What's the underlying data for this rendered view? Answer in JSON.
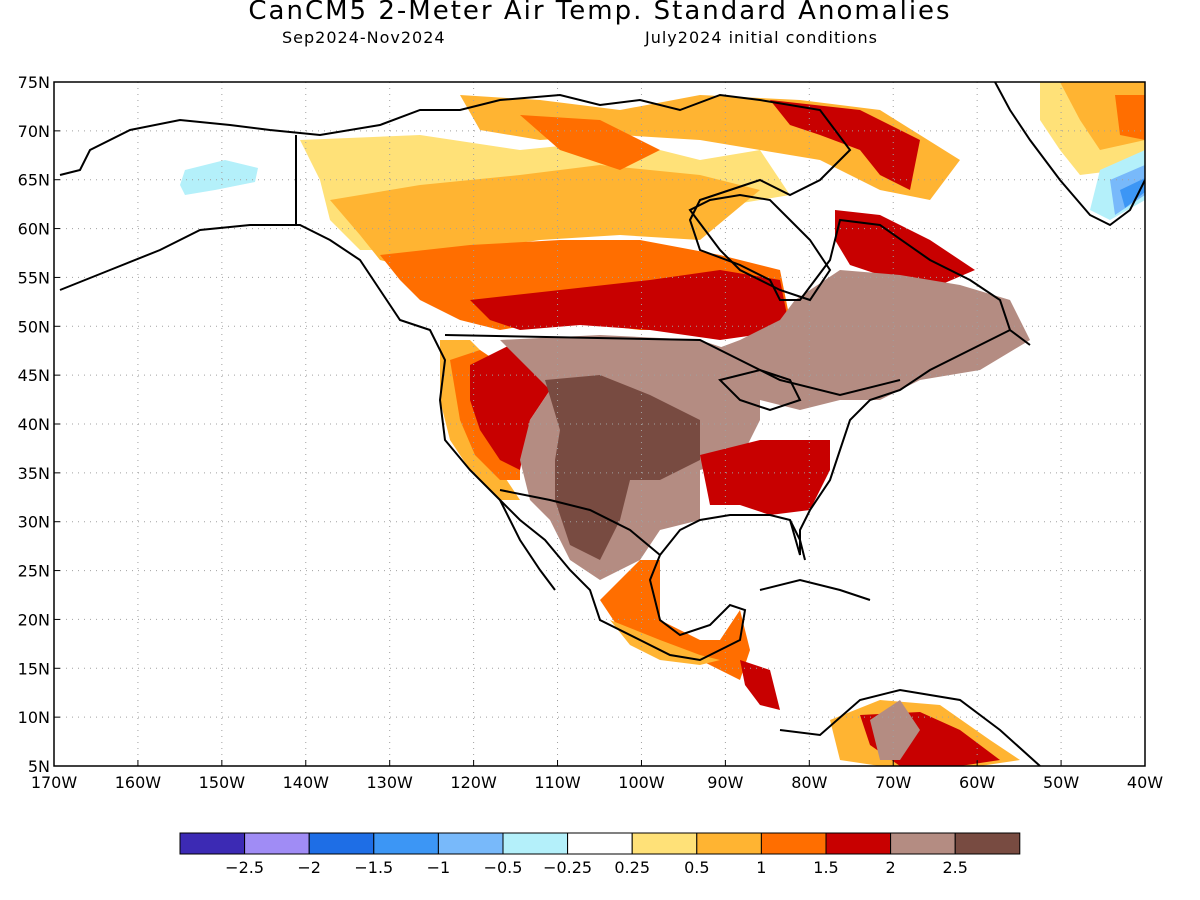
{
  "title": "CanCM5 2-Meter Air Temp. Standard Anomalies",
  "period": "Sep2024-Nov2024",
  "init": "July2024 initial conditions",
  "lat_labels": [
    "75N",
    "70N",
    "65N",
    "60N",
    "55N",
    "50N",
    "45N",
    "40N",
    "35N",
    "30N",
    "25N",
    "20N",
    "15N",
    "10N",
    "5N"
  ],
  "lon_labels": [
    "170W",
    "160W",
    "150W",
    "140W",
    "130W",
    "120W",
    "110W",
    "100W",
    "90W",
    "80W",
    "70W",
    "60W",
    "50W",
    "40W"
  ],
  "legend": {
    "colors": [
      "#3c2ab4",
      "#a08cf5",
      "#1e6ee6",
      "#3c96f5",
      "#78b9fa",
      "#b4f0fa",
      "#ffffff",
      "#ffe178",
      "#ffb432",
      "#ff6e00",
      "#c80000",
      "#b48c82",
      "#784b41"
    ],
    "labels": [
      "-2.5",
      "-2",
      "-1.5",
      "-1",
      "-0.5",
      "-0.25",
      "0.25",
      "0.5",
      "1",
      "1.5",
      "2",
      "2.5"
    ]
  },
  "map_colors": {
    "coast": "#000000",
    "grid": "#a0a0a0",
    "c0_5": "#ffe178",
    "c1": "#ffb432",
    "c1_5": "#ff6e00",
    "c2": "#c80000",
    "c2_5": "#b48c82",
    "c3": "#784b41",
    "cm05": "#b4f0fa",
    "cm1": "#78b9fa",
    "cm15": "#3c96f5"
  }
}
